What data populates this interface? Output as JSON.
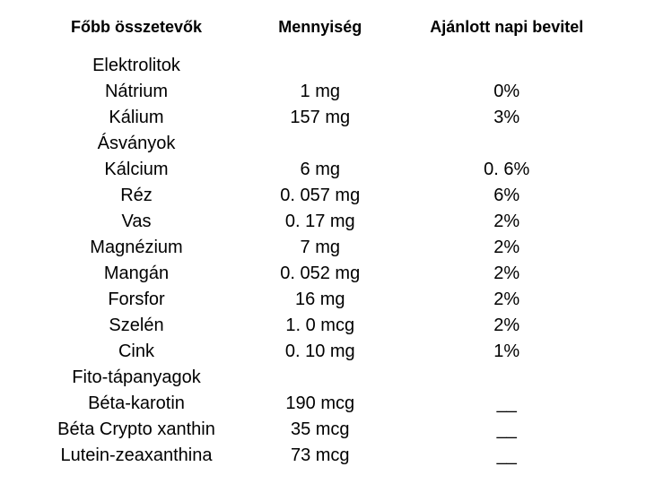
{
  "headers": {
    "col1": "Főbb összetevők",
    "col2": "Mennyiség",
    "col3": "Ajánlott napi bevitel"
  },
  "rows": [
    {
      "name": "Elektrolitok",
      "amount": "",
      "daily": ""
    },
    {
      "name": "Nátrium",
      "amount": "1 mg",
      "daily": "0%"
    },
    {
      "name": "Kálium",
      "amount": "157 mg",
      "daily": "3%"
    },
    {
      "name": "Ásványok",
      "amount": "",
      "daily": ""
    },
    {
      "name": "Kálcium",
      "amount": "6 mg",
      "daily": "0. 6%"
    },
    {
      "name": "Réz",
      "amount": "0. 057 mg",
      "daily": "6%"
    },
    {
      "name": "Vas",
      "amount": "0. 17 mg",
      "daily": "2%"
    },
    {
      "name": "Magnézium",
      "amount": "7 mg",
      "daily": "2%"
    },
    {
      "name": "Mangán",
      "amount": "0. 052 mg",
      "daily": "2%"
    },
    {
      "name": "Forsfor",
      "amount": "16 mg",
      "daily": "2%"
    },
    {
      "name": "Szelén",
      "amount": "1. 0 mcg",
      "daily": "2%"
    },
    {
      "name": "Cink",
      "amount": "0. 10 mg",
      "daily": "1%"
    },
    {
      "name": "Fito-tápanyagok",
      "amount": "",
      "daily": ""
    },
    {
      "name": "Béta-karotin",
      "amount": "190 mcg",
      "daily": "__"
    },
    {
      "name": "Béta Crypto xanthin",
      "amount": "35 mcg",
      "daily": "__"
    },
    {
      "name": "Lutein-zeaxanthina",
      "amount": "73 mcg",
      "daily": "__"
    }
  ],
  "colors": {
    "background": "#ffffff",
    "text": "#000000"
  },
  "fontsize": {
    "header": 18,
    "body": 20
  }
}
